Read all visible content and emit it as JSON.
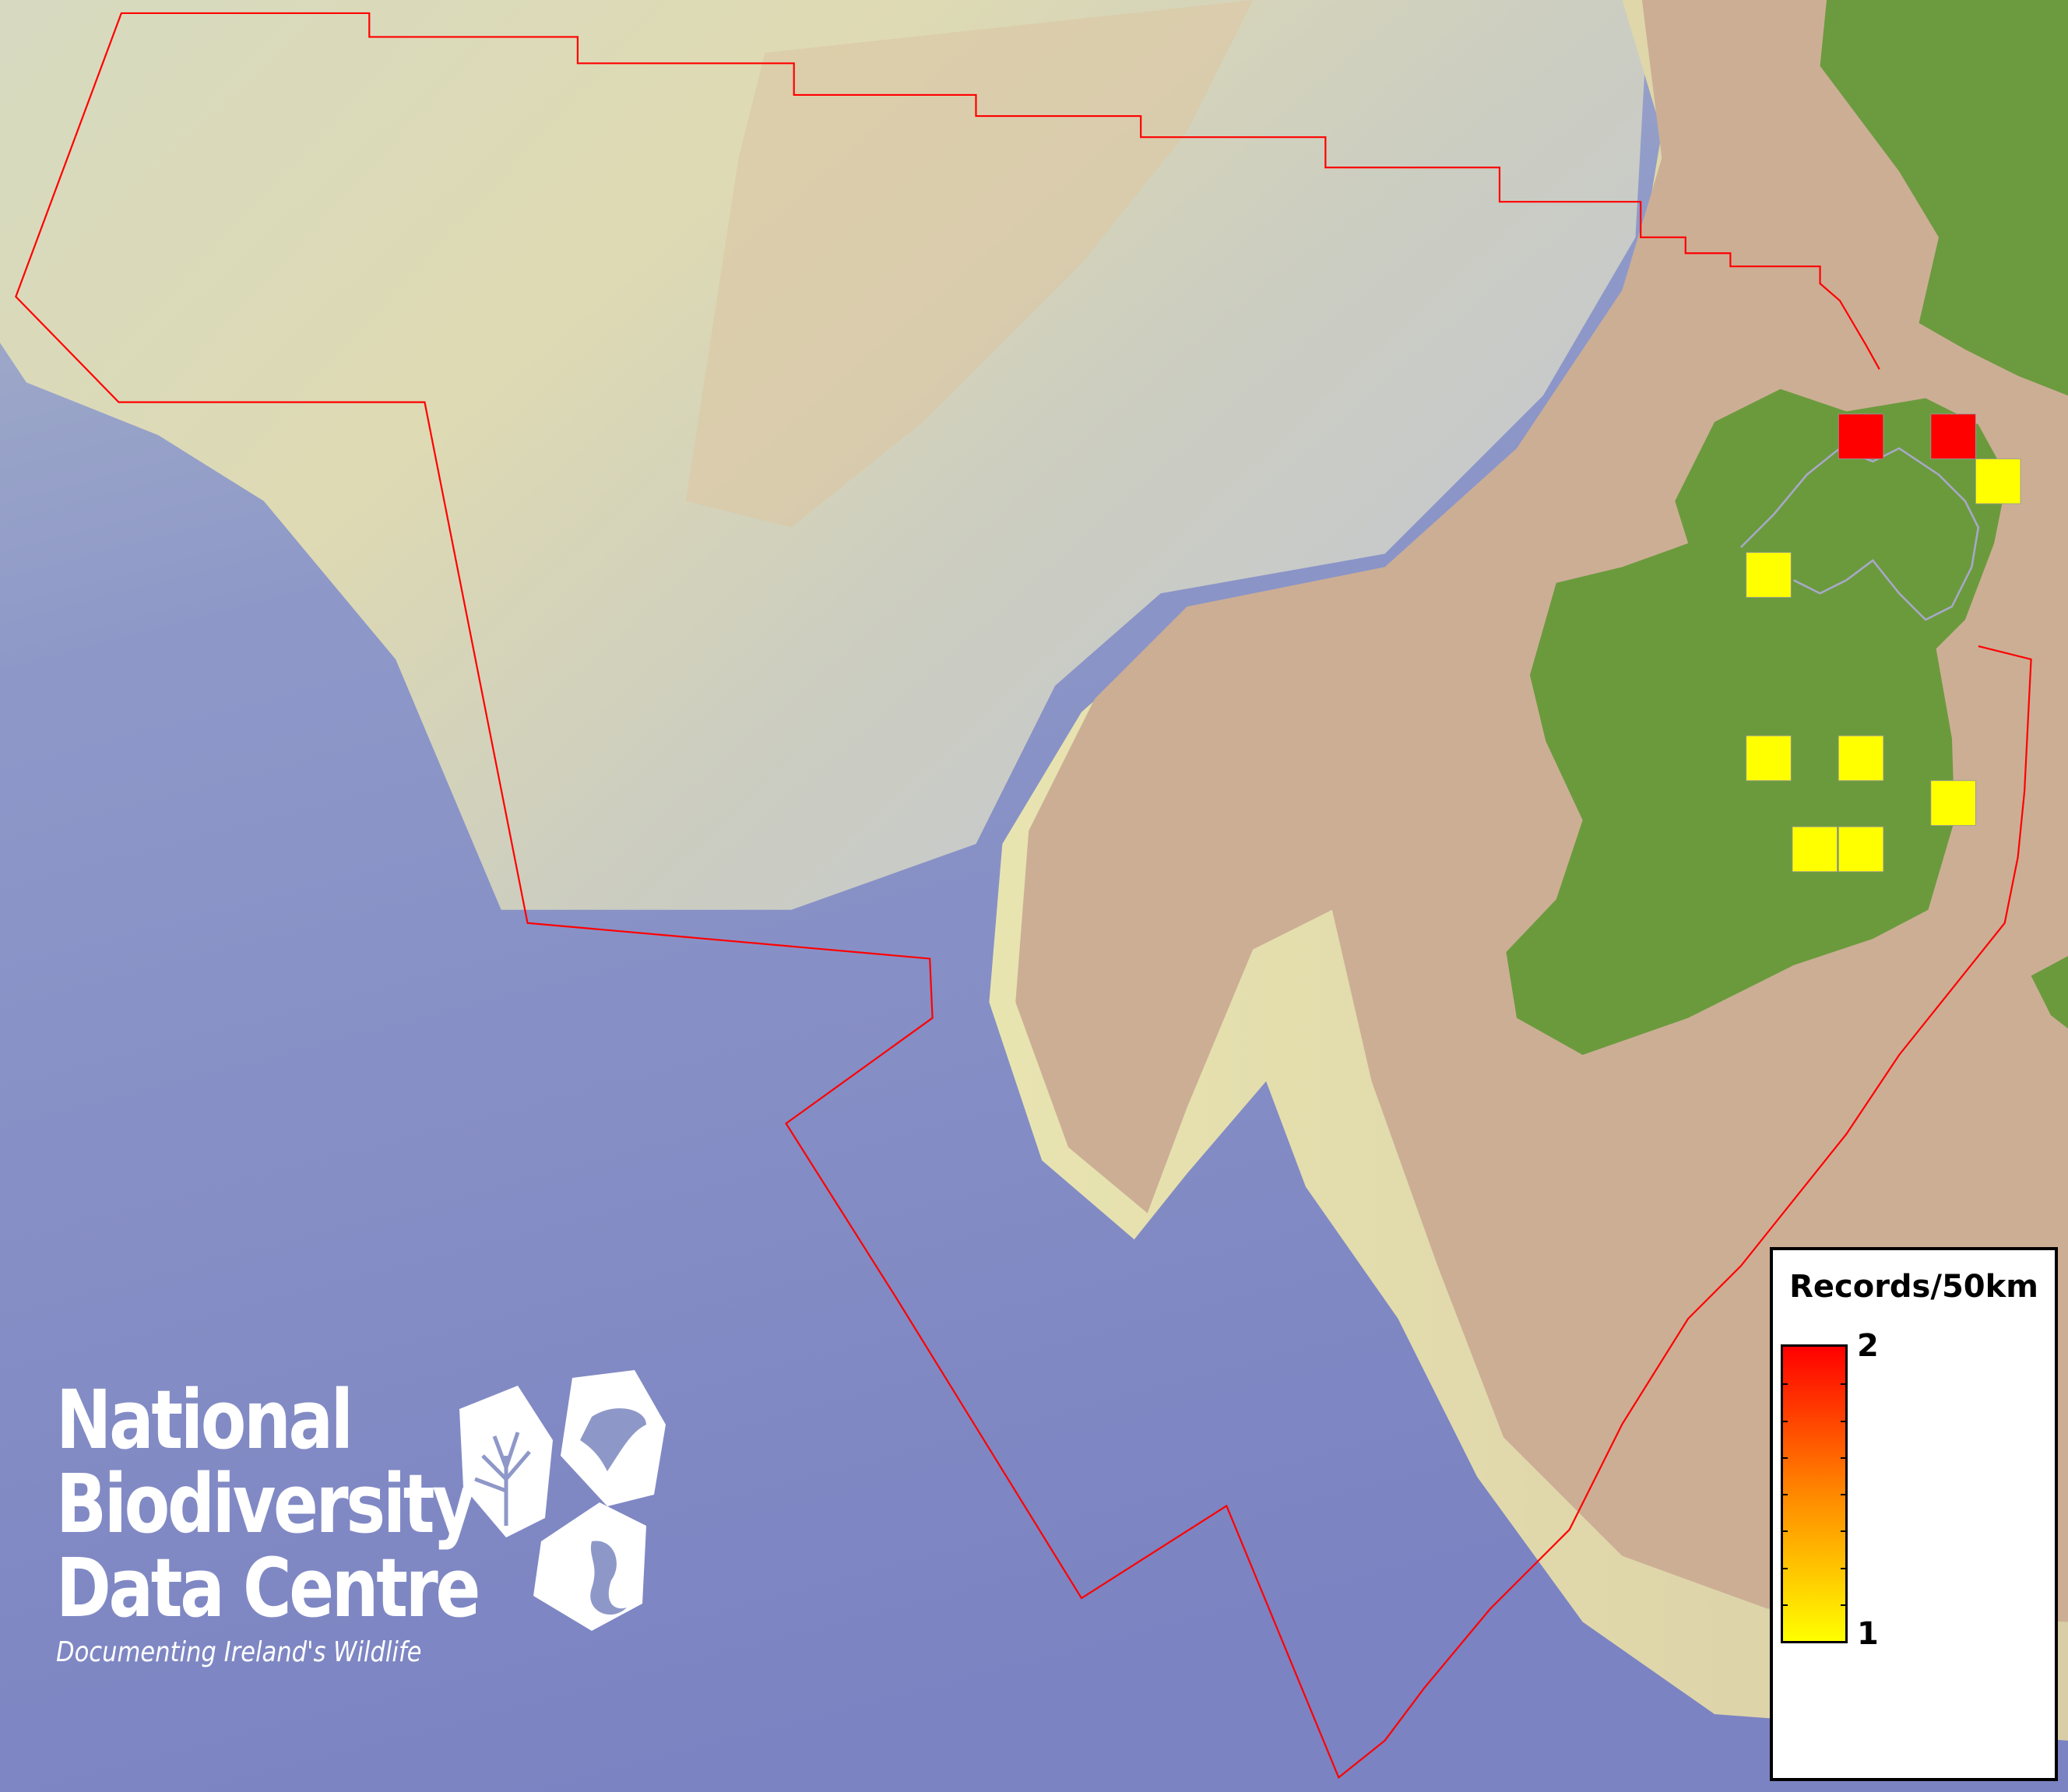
{
  "legend": {
    "title": "Records/50km",
    "max_label": "2",
    "min_label": "1",
    "color_min": "#ffff00",
    "color_max": "#ff0000"
  },
  "records": [
    2,
    2,
    1,
    1,
    1,
    1,
    1,
    1,
    1
  ],
  "colors": {
    "ocean_deep": "#7f87c4",
    "shelf": "#cdb096",
    "land": "#6a9a3e",
    "boundary": "#ff0000"
  },
  "logo": {
    "line1": "National",
    "line2": "Biodiversity",
    "line3": "Data Centre",
    "tagline": "Documenting Ireland's Wildlife"
  }
}
